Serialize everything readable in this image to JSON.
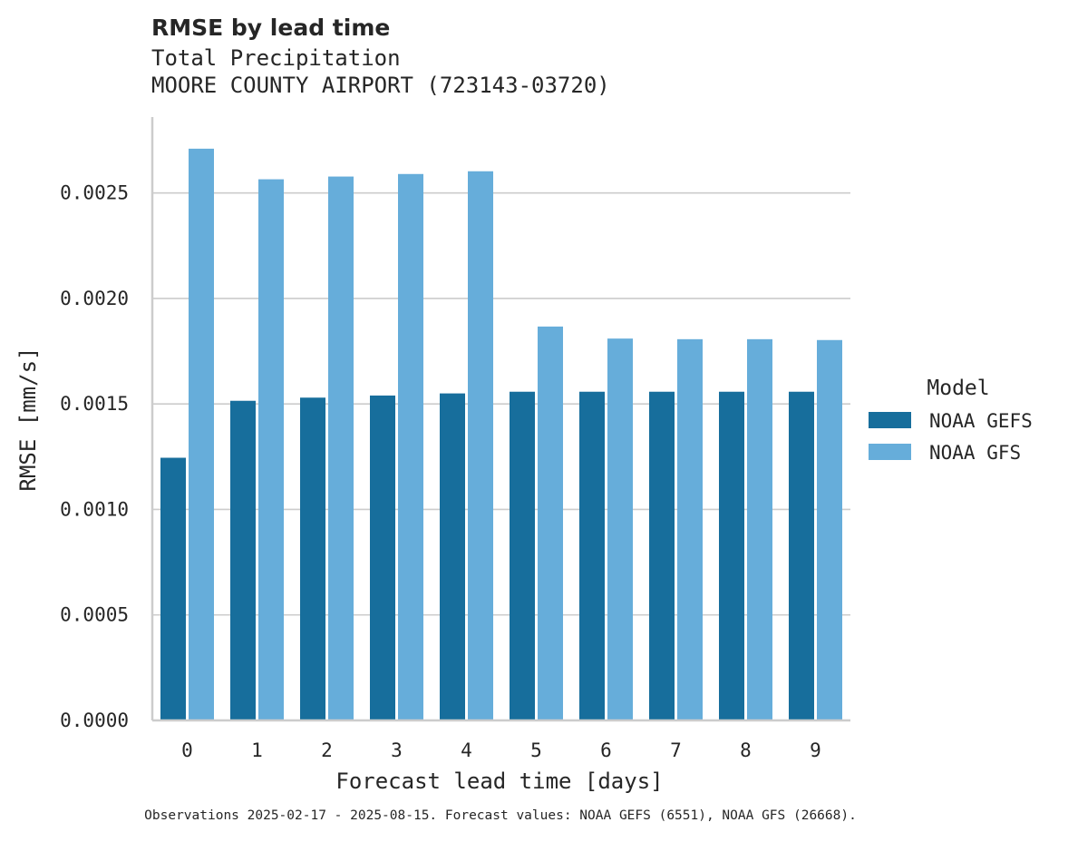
{
  "chart_data": {
    "type": "bar",
    "title": "RMSE by lead time",
    "subtitle_lines": [
      "Total Precipitation",
      "MOORE COUNTY AIRPORT (723143-03720)"
    ],
    "xlabel": "Forecast lead time [days]",
    "ylabel": "RMSE [mm/s]",
    "categories": [
      "0",
      "1",
      "2",
      "3",
      "4",
      "5",
      "6",
      "7",
      "8",
      "9"
    ],
    "ylim": [
      0,
      0.00286
    ],
    "yticks": [
      0.0,
      0.0005,
      0.001,
      0.0015,
      0.002,
      0.0025
    ],
    "ytick_labels": [
      "0.0000",
      "0.0005",
      "0.0010",
      "0.0015",
      "0.0020",
      "0.0025"
    ],
    "grid": "horizontal",
    "legend_title": "Model",
    "legend_position": "right",
    "series": [
      {
        "name": "NOAA GEFS",
        "color": "#176e9c",
        "values": [
          0.001245,
          0.001515,
          0.00153,
          0.00154,
          0.00155,
          0.001558,
          0.001558,
          0.001558,
          0.001558,
          0.001558
        ]
      },
      {
        "name": "NOAA GFS",
        "color": "#66adda",
        "values": [
          0.00271,
          0.002565,
          0.002578,
          0.00259,
          0.002603,
          0.001867,
          0.00181,
          0.001807,
          0.001807,
          0.001803
        ]
      }
    ],
    "footnote": "Observations 2025-02-17 - 2025-08-15. Forecast values: NOAA GEFS (6551), NOAA GFS (26668)."
  }
}
